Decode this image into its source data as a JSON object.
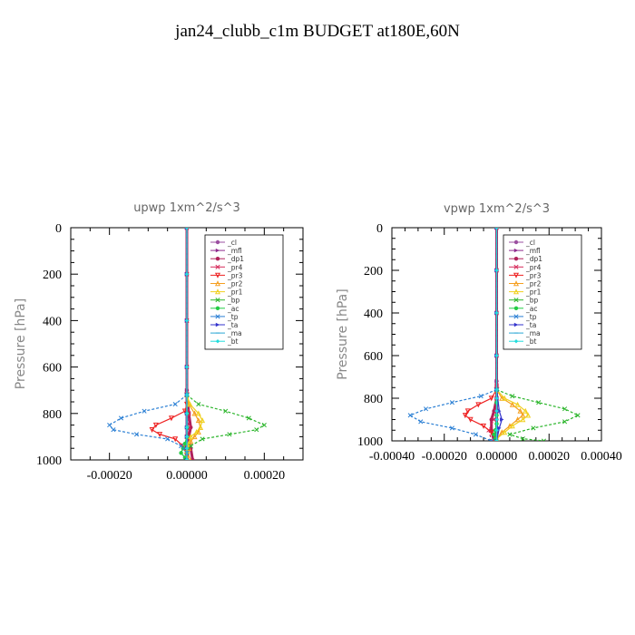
{
  "figure_title": "jan24_clubb_c1m  BUDGET at180E,60N",
  "chart_data": [
    {
      "type": "line",
      "title": "upwp   1xm^2/s^3",
      "ylabel": "Pressure [hPa]",
      "xlabel": "",
      "ylim": [
        1000,
        0
      ],
      "xlim": [
        -0.0003,
        0.0003
      ],
      "xticks": [
        "-0.00020",
        "0.00000",
        "0.00020"
      ],
      "xtick_values": [
        -0.0002,
        0,
        0.0002
      ],
      "yticks": [
        "0",
        "200",
        "400",
        "600",
        "800",
        "1000"
      ],
      "ytick_values": [
        0,
        200,
        400,
        600,
        800,
        1000
      ],
      "legend_position": "top-right",
      "series": [
        {
          "name": "_cl",
          "color": "#9b4fa0",
          "marker": "circle",
          "x": [
            0,
            0,
            0,
            0,
            0,
            0,
            0,
            0,
            0,
            0
          ],
          "y": [
            0,
            200,
            400,
            600,
            700,
            800,
            860,
            900,
            950,
            1000
          ]
        },
        {
          "name": "_mfl",
          "color": "#8e2a8e",
          "marker": "triangle-right",
          "x": [
            0,
            0,
            0,
            0,
            0,
            0,
            0,
            0,
            0,
            0
          ],
          "y": [
            0,
            200,
            400,
            600,
            700,
            800,
            860,
            900,
            950,
            1000
          ]
        },
        {
          "name": "_dp1",
          "color": "#b0215a",
          "marker": "circle",
          "x": [
            0,
            0,
            0,
            0,
            0,
            5e-06,
            1e-05,
            5e-06,
            1e-05,
            1.5e-05
          ],
          "y": [
            0,
            200,
            400,
            600,
            720,
            800,
            860,
            900,
            950,
            1000
          ]
        },
        {
          "name": "_pr4",
          "color": "#d62a5a",
          "marker": "x",
          "x": [
            0,
            0,
            0,
            0,
            0,
            5e-06,
            5e-06,
            0,
            -5e-06,
            0
          ],
          "y": [
            0,
            200,
            400,
            600,
            720,
            800,
            860,
            900,
            950,
            1000
          ]
        },
        {
          "name": "_pr3",
          "color": "#ee2222",
          "marker": "triangle-down",
          "x": [
            0,
            0,
            -5e-06,
            -4e-05,
            -8e-05,
            -9e-05,
            -7e-05,
            -3e-05,
            -1e-05,
            0
          ],
          "y": [
            720,
            760,
            790,
            820,
            850,
            870,
            890,
            910,
            940,
            980
          ]
        },
        {
          "name": "_pr2",
          "color": "#f5a020",
          "marker": "triangle-up",
          "x": [
            0,
            5e-06,
            2e-05,
            3e-05,
            3.5e-05,
            3e-05,
            2e-05,
            1e-05,
            5e-06,
            5e-06
          ],
          "y": [
            720,
            760,
            800,
            830,
            860,
            880,
            900,
            920,
            950,
            990
          ]
        },
        {
          "name": "_pr1",
          "color": "#f0d020",
          "marker": "triangle-up",
          "x": [
            0,
            8e-06,
            3e-05,
            4e-05,
            3.5e-05,
            2.5e-05,
            1e-05,
            5e-06,
            0,
            0
          ],
          "y": [
            720,
            760,
            800,
            830,
            860,
            880,
            900,
            930,
            960,
            1000
          ]
        },
        {
          "name": "_bp",
          "color": "#2bb52b",
          "marker": "x",
          "x": [
            0,
            3e-05,
            0.0001,
            0.00016,
            0.0002,
            0.00018,
            0.00011,
            4e-05,
            1e-05,
            0
          ],
          "y": [
            720,
            760,
            790,
            820,
            850,
            870,
            890,
            910,
            940,
            970
          ]
        },
        {
          "name": "_ac",
          "color": "#22cc44",
          "marker": "circle",
          "x": [
            0,
            0,
            0,
            0,
            -5e-06,
            -1e-05,
            -1.5e-05,
            -5e-06,
            0
          ],
          "y": [
            720,
            800,
            860,
            900,
            930,
            950,
            970,
            990,
            1000
          ]
        },
        {
          "name": "_tp",
          "color": "#2a7fd4",
          "marker": "x",
          "x": [
            0,
            -3e-05,
            -0.00011,
            -0.00017,
            -0.0002,
            -0.00019,
            -0.00013,
            -5e-05,
            -1.5e-05,
            0
          ],
          "y": [
            720,
            760,
            790,
            820,
            850,
            870,
            890,
            910,
            940,
            970
          ]
        },
        {
          "name": "_ta",
          "color": "#3333cc",
          "marker": "triangle-right",
          "x": [
            0,
            0,
            0,
            0,
            0,
            0,
            0,
            0,
            0,
            0
          ],
          "y": [
            0,
            200,
            400,
            600,
            720,
            800,
            860,
            900,
            950,
            1000
          ]
        },
        {
          "name": "_ma",
          "color": "#2aa6d4",
          "marker": "dash",
          "x": [
            0,
            0,
            0,
            0,
            0,
            0,
            0,
            0,
            0,
            0
          ],
          "y": [
            0,
            200,
            400,
            600,
            720,
            800,
            860,
            900,
            950,
            1000
          ]
        },
        {
          "name": "_bt",
          "color": "#22dddd",
          "marker": "diamond",
          "x": [
            0,
            0,
            0,
            0,
            0,
            0,
            0,
            0,
            0,
            0
          ],
          "y": [
            0,
            200,
            400,
            600,
            720,
            800,
            860,
            900,
            950,
            1000
          ]
        }
      ]
    },
    {
      "type": "line",
      "title": "vpwp   1xm^2/s^3",
      "ylabel": "Pressure [hPa]",
      "xlabel": "",
      "ylim": [
        1000,
        0
      ],
      "xlim": [
        -0.0004,
        0.0004
      ],
      "xticks": [
        "-0.00040",
        "-0.00020",
        "0.00000",
        "0.00020",
        "0.00040"
      ],
      "xtick_values": [
        -0.0004,
        -0.0002,
        0,
        0.0002,
        0.0004
      ],
      "yticks": [
        "0",
        "200",
        "400",
        "600",
        "800",
        "1000"
      ],
      "ytick_values": [
        0,
        200,
        400,
        600,
        800,
        1000
      ],
      "legend_position": "top-right",
      "series": [
        {
          "name": "_cl",
          "color": "#9b4fa0",
          "marker": "circle",
          "x": [
            0,
            0,
            0,
            0,
            0,
            0,
            0,
            0,
            0,
            0
          ],
          "y": [
            0,
            200,
            400,
            600,
            720,
            800,
            860,
            900,
            950,
            1000
          ]
        },
        {
          "name": "_mfl",
          "color": "#8e2a8e",
          "marker": "triangle-right",
          "x": [
            0,
            0,
            0,
            0,
            0,
            0,
            0,
            0,
            0,
            0
          ],
          "y": [
            0,
            200,
            400,
            600,
            720,
            800,
            860,
            900,
            950,
            1000
          ]
        },
        {
          "name": "_dp1",
          "color": "#b0215a",
          "marker": "circle",
          "x": [
            0,
            0,
            0,
            0,
            0,
            0,
            -1e-05,
            -2e-05,
            -2e-05,
            -1e-05
          ],
          "y": [
            0,
            200,
            400,
            600,
            740,
            800,
            860,
            900,
            950,
            1000
          ]
        },
        {
          "name": "_pr4",
          "color": "#d62a5a",
          "marker": "x",
          "x": [
            0,
            0,
            0,
            0,
            0,
            0,
            0,
            -1e-05,
            -3e-05,
            -2e-05
          ],
          "y": [
            0,
            200,
            400,
            600,
            740,
            800,
            860,
            900,
            950,
            1000
          ]
        },
        {
          "name": "_pr3",
          "color": "#ee2222",
          "marker": "triangle-down",
          "x": [
            0,
            -2e-05,
            -7e-05,
            -0.00011,
            -0.00012,
            -0.0001,
            -5e-05,
            -2e-05,
            0
          ],
          "y": [
            760,
            800,
            830,
            860,
            880,
            900,
            930,
            960,
            990
          ]
        },
        {
          "name": "_pr2",
          "color": "#f5a020",
          "marker": "triangle-up",
          "x": [
            0,
            2e-05,
            6e-05,
            9e-05,
            0.0001,
            8e-05,
            5e-05,
            2e-05,
            0
          ],
          "y": [
            760,
            800,
            830,
            860,
            880,
            900,
            930,
            960,
            990
          ]
        },
        {
          "name": "_pr1",
          "color": "#f0d020",
          "marker": "triangle-up",
          "x": [
            0,
            3e-05,
            8e-05,
            0.00011,
            0.00012,
            0.0001,
            6e-05,
            3e-05,
            0
          ],
          "y": [
            760,
            800,
            830,
            860,
            880,
            900,
            930,
            960,
            990
          ]
        },
        {
          "name": "_bp",
          "color": "#2bb52b",
          "marker": "x",
          "x": [
            0,
            6e-05,
            0.00016,
            0.00026,
            0.00031,
            0.00026,
            0.00014,
            5e-05,
            0.0001,
            0.00018
          ],
          "y": [
            760,
            790,
            820,
            850,
            880,
            910,
            940,
            970,
            990,
            1000
          ]
        },
        {
          "name": "_ac",
          "color": "#22cc44",
          "marker": "circle",
          "x": [
            0,
            0,
            0,
            0,
            -5e-06,
            -1e-05,
            -5e-06,
            0
          ],
          "y": [
            760,
            820,
            880,
            920,
            950,
            970,
            990,
            1000
          ]
        },
        {
          "name": "_tp",
          "color": "#2a7fd4",
          "marker": "x",
          "x": [
            0,
            -6e-05,
            -0.00017,
            -0.00027,
            -0.00033,
            -0.00029,
            -0.00017,
            -8e-05,
            -2e-05
          ],
          "y": [
            760,
            790,
            820,
            850,
            880,
            910,
            940,
            970,
            1000
          ]
        },
        {
          "name": "_ta",
          "color": "#3333cc",
          "marker": "triangle-right",
          "x": [
            0,
            0,
            0,
            0,
            0,
            1e-05,
            2e-05,
            1e-05,
            0
          ],
          "y": [
            0,
            200,
            400,
            600,
            760,
            860,
            900,
            940,
            1000
          ]
        },
        {
          "name": "_ma",
          "color": "#2aa6d4",
          "marker": "dash",
          "x": [
            0,
            0,
            0,
            0,
            0,
            0,
            0,
            0,
            0,
            0
          ],
          "y": [
            0,
            200,
            400,
            600,
            760,
            800,
            860,
            900,
            950,
            1000
          ]
        },
        {
          "name": "_bt",
          "color": "#22dddd",
          "marker": "diamond",
          "x": [
            0,
            0,
            0,
            0,
            0,
            0,
            0,
            0,
            0,
            0
          ],
          "y": [
            0,
            200,
            400,
            600,
            760,
            800,
            860,
            900,
            950,
            1000
          ]
        }
      ]
    }
  ]
}
